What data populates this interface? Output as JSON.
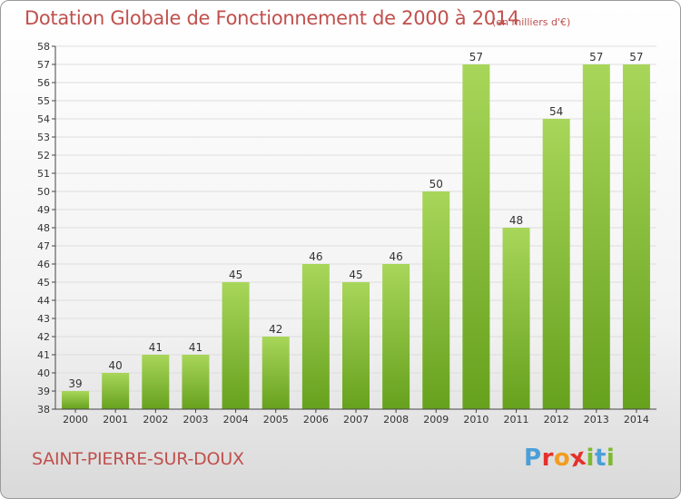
{
  "header": {
    "title": "Dotation Globale de Fonctionnement de 2000 à 2014",
    "unit_note": "(en milliers d'€)"
  },
  "footer": {
    "commune": "SAINT-PIERRE-SUR-DOUX",
    "brand": "Proxiti",
    "brand_letters": [
      "P",
      "r",
      "o",
      "x",
      "i",
      "t",
      "i"
    ],
    "brand_colors": [
      "#4a9fd8",
      "#e4312c",
      "#f39c1f",
      "#e4312c",
      "#7cba2f",
      "#4a9fd8",
      "#7cba2f"
    ]
  },
  "chart_data": {
    "type": "bar",
    "title": "Dotation Globale de Fonctionnement de 2000 à 2014",
    "subtitle": "(en milliers d'€)",
    "xlabel": "",
    "ylabel": "",
    "categories": [
      "2000",
      "2001",
      "2002",
      "2003",
      "2004",
      "2005",
      "2006",
      "2007",
      "2008",
      "2009",
      "2010",
      "2011",
      "2012",
      "2013",
      "2014"
    ],
    "values": [
      39,
      40,
      41,
      41,
      45,
      42,
      46,
      45,
      46,
      50,
      57,
      48,
      54,
      57,
      57
    ],
    "ylim": [
      38,
      58
    ],
    "yticks": [
      38,
      39,
      40,
      41,
      42,
      43,
      44,
      45,
      46,
      47,
      48,
      49,
      50,
      51,
      52,
      53,
      54,
      55,
      56,
      57,
      58
    ],
    "grid": true,
    "legend": "none",
    "colors": {
      "bar_light": "#a8d65a",
      "bar_dark": "#66a11d",
      "grid": "#dddddd",
      "axis": "#444444",
      "text": "#333333",
      "accent": "#c0504d"
    }
  }
}
